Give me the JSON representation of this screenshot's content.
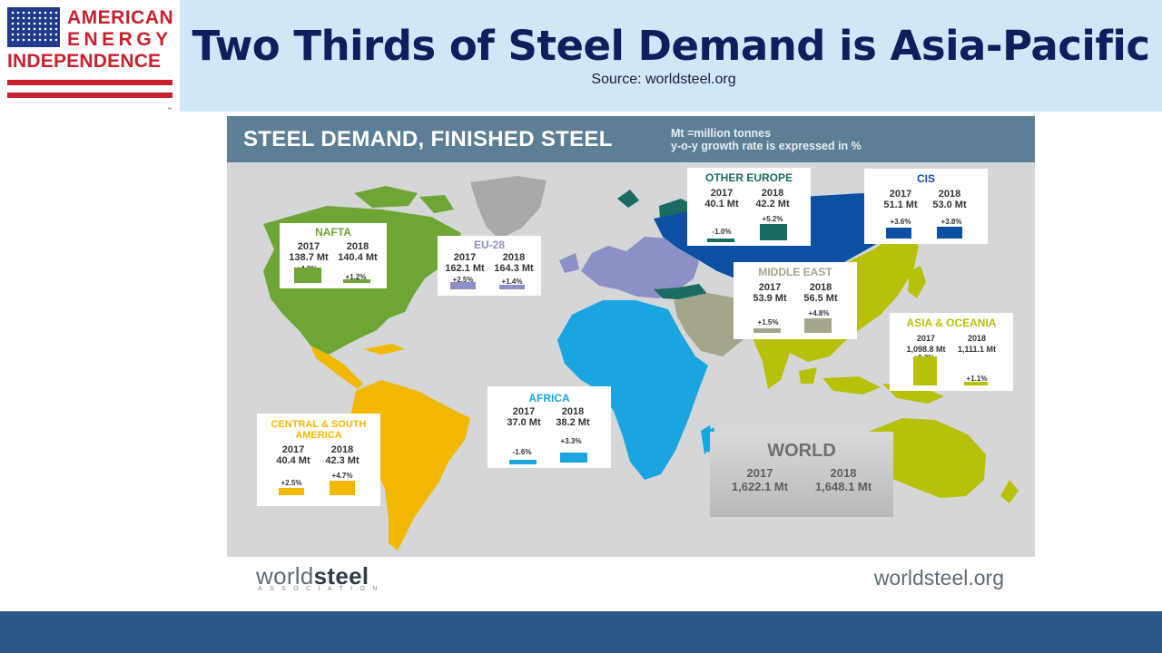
{
  "header": {
    "logo": {
      "line1": "AMERICAN",
      "line2": "ENERGY",
      "line3": "INDEPENDENCE",
      "tm": "™"
    },
    "title": "Two Thirds of Steel Demand is Asia-Pacific",
    "source": "Source: worldsteel.org"
  },
  "panel": {
    "title": "STEEL DEMAND, FINISHED STEEL",
    "note_line1": "Mt =million tonnes",
    "note_line2": "y-o-y growth rate is expressed in %"
  },
  "regions": {
    "nafta": {
      "name": "NAFTA",
      "y1": "2017",
      "v1": "138.7 Mt",
      "y2": "2018",
      "v2": "140.4 Mt",
      "g1": "+4.9%",
      "g2": "+1.2%",
      "color": "#6ea534",
      "growth1": 4.9,
      "growth2": 1.2
    },
    "eu28": {
      "name": "EU-28",
      "y1": "2017",
      "v1": "162.1 Mt",
      "y2": "2018",
      "v2": "164.3 Mt",
      "g1": "+2.5%",
      "g2": "+1.4%",
      "color": "#8d90c7",
      "growth1": 2.5,
      "growth2": 1.4
    },
    "other_europe": {
      "name": "OTHER EUROPE",
      "y1": "2017",
      "v1": "40.1 Mt",
      "y2": "2018",
      "v2": "42.2 Mt",
      "g1": "-1.0%",
      "g2": "+5.2%",
      "color": "#1a6b62",
      "growth1": -1.0,
      "growth2": 5.2
    },
    "cis": {
      "name": "CIS",
      "y1": "2017",
      "v1": "51.1 Mt",
      "y2": "2018",
      "v2": "53.0 Mt",
      "g1": "+3.6%",
      "g2": "+3.8%",
      "color": "#0d4fa3",
      "growth1": 3.6,
      "growth2": 3.8
    },
    "middle_east": {
      "name": "MIDDLE EAST",
      "y1": "2017",
      "v1": "53.9 Mt",
      "y2": "2018",
      "v2": "56.5 Mt",
      "g1": "+1.5%",
      "g2": "+4.8%",
      "color": "#a4a58a",
      "growth1": 1.5,
      "growth2": 4.8
    },
    "asia_oceania": {
      "name": "ASIA & OCEANIA",
      "y1": "2017",
      "v1": "1,098.8 Mt",
      "y2": "2018",
      "v2": "1,111.1 Mt",
      "g1": "+9.3%",
      "g2": "+1.1%",
      "color": "#b8c10a",
      "growth1": 9.3,
      "growth2": 1.1
    },
    "africa": {
      "name": "AFRICA",
      "y1": "2017",
      "v1": "37.0 Mt",
      "y2": "2018",
      "v2": "38.2 Mt",
      "g1": "-1.6%",
      "g2": "+3.3%",
      "color": "#1aa5e0",
      "growth1": -1.6,
      "growth2": 3.3
    },
    "csa": {
      "name_line1": "CENTRAL & SOUTH",
      "name_line2": "AMERICA",
      "y1": "2017",
      "v1": "40.4 Mt",
      "y2": "2018",
      "v2": "42.3 Mt",
      "g1": "+2.5%",
      "g2": "+4.7%",
      "color": "#f3b800",
      "growth1": 2.5,
      "growth2": 4.7
    }
  },
  "world": {
    "name": "WORLD",
    "y1": "2017",
    "v1": "1,622.1 Mt",
    "y2": "2018",
    "v2": "1,648.1 Mt"
  },
  "footer": {
    "logo_light": "world",
    "logo_bold": "steel",
    "assoc": "ASSOCIATION",
    "url": "worldsteel.org"
  }
}
